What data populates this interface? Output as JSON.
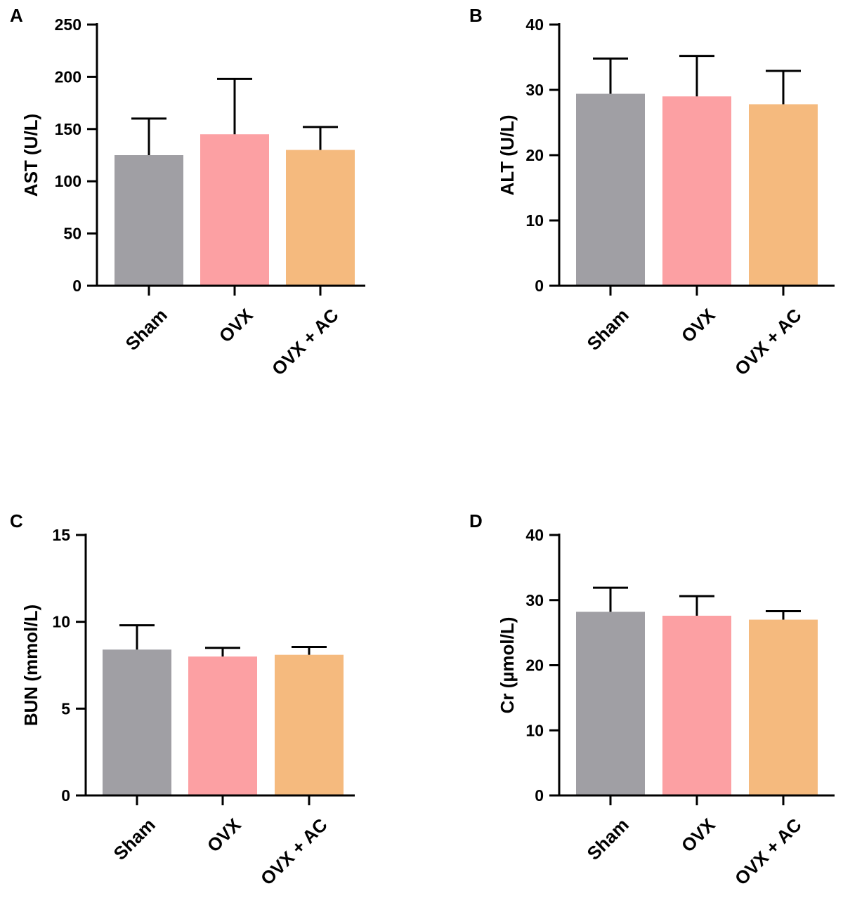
{
  "chart_data": [
    {
      "panel": "A",
      "type": "bar",
      "categories": [
        "Sham",
        "OVX",
        "OVX + AC"
      ],
      "values": [
        125,
        145,
        130
      ],
      "errors": [
        35,
        53,
        22
      ],
      "colors": [
        "#a09fa4",
        "#fca0a3",
        "#f5ba7e"
      ],
      "ylabel": "AST (U/L)",
      "ylim": [
        0,
        250
      ],
      "yticks": [
        0,
        50,
        100,
        150,
        200,
        250
      ],
      "grid": false
    },
    {
      "panel": "B",
      "type": "bar",
      "categories": [
        "Sham",
        "OVX",
        "OVX + AC"
      ],
      "values": [
        29.4,
        29.0,
        27.8
      ],
      "errors": [
        5.4,
        6.2,
        5.1
      ],
      "colors": [
        "#a09fa4",
        "#fca0a3",
        "#f5ba7e"
      ],
      "ylabel": "ALT (U/L)",
      "ylim": [
        0,
        40
      ],
      "yticks": [
        0,
        10,
        20,
        30,
        40
      ],
      "grid": false
    },
    {
      "panel": "C",
      "type": "bar",
      "categories": [
        "Sham",
        "OVX",
        "OVX + AC"
      ],
      "values": [
        8.4,
        8.0,
        8.1
      ],
      "errors": [
        1.4,
        0.5,
        0.45
      ],
      "colors": [
        "#a09fa4",
        "#fca0a3",
        "#f5ba7e"
      ],
      "ylabel": "BUN (mmol/L)",
      "ylim": [
        0,
        15
      ],
      "yticks": [
        0,
        5,
        10,
        15
      ],
      "grid": false
    },
    {
      "panel": "D",
      "type": "bar",
      "categories": [
        "Sham",
        "OVX",
        "OVX + AC"
      ],
      "values": [
        28.2,
        27.6,
        27.0
      ],
      "errors": [
        3.7,
        3.0,
        1.3
      ],
      "colors": [
        "#a09fa4",
        "#fca0a3",
        "#f5ba7e"
      ],
      "ylabel": "Cr (µmol/L)",
      "ylim": [
        0,
        40
      ],
      "yticks": [
        0,
        10,
        20,
        30,
        40
      ],
      "grid": false
    }
  ]
}
